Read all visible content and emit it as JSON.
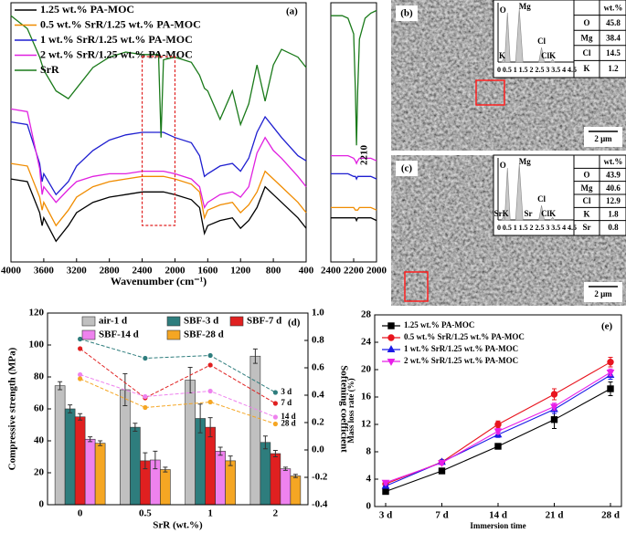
{
  "chart_data": [
    {
      "type": "line",
      "label": "(a)",
      "xlabel": "Wavenumber (cm⁻¹)",
      "x": [
        4000,
        3800,
        3650,
        3620,
        3600,
        3450,
        3300,
        3200,
        3000,
        2800,
        2600,
        2400,
        2200,
        2170,
        2140,
        2000,
        1800,
        1700,
        1640,
        1600,
        1450,
        1300,
        1200,
        1100,
        1000,
        900,
        800,
        700,
        500,
        400
      ],
      "xlim": [
        4000,
        400
      ],
      "xticks": [
        4000,
        3600,
        3200,
        2800,
        2400,
        2000,
        1600,
        1200,
        800,
        400
      ],
      "ylim": [
        0,
        100
      ],
      "legend": "upper left",
      "series": [
        {
          "name": "1.25 wt.% PA-MOC",
          "color": "#000000",
          "values": [
            32,
            31,
            19,
            14,
            17,
            8,
            14,
            19,
            23,
            25,
            26,
            27,
            27,
            27,
            27,
            26,
            24,
            21,
            11,
            14,
            16,
            17,
            13,
            16,
            21,
            29,
            26,
            23,
            17,
            13
          ]
        },
        {
          "name": "0.5 wt.% SrR/1.25 wt.% PA-MOC",
          "color": "#f08c00",
          "values": [
            38,
            37,
            25,
            20,
            23,
            14,
            20,
            25,
            29,
            31,
            32,
            33,
            33,
            33,
            33,
            32,
            30,
            27,
            17,
            20,
            22,
            23,
            19,
            22,
            27,
            35,
            32,
            29,
            23,
            19
          ]
        },
        {
          "name": "1 wt.% SrR/1.25 wt.% PA-MOC",
          "color": "#1f1fd0",
          "values": [
            54,
            53,
            38,
            31,
            34,
            26,
            31,
            37,
            43,
            47,
            49,
            50,
            50,
            50,
            50,
            48,
            46,
            41,
            33,
            34,
            37,
            38,
            35,
            40,
            50,
            56,
            52,
            48,
            41,
            39
          ]
        },
        {
          "name": "2 wt.% SrR/1.25 wt.% PA-MOC",
          "color": "#e020e0",
          "values": [
            59,
            58,
            36,
            26,
            29,
            23,
            28,
            31,
            33,
            34,
            34,
            35,
            35,
            35,
            35,
            34,
            32,
            29,
            21,
            23,
            26,
            27,
            25,
            29,
            42,
            48,
            43,
            40,
            33,
            29
          ]
        },
        {
          "name": "SrR",
          "color": "#1a7a1a",
          "values": [
            95,
            90,
            79,
            76,
            74,
            66,
            63,
            67,
            75,
            79,
            81,
            80,
            80,
            48,
            78,
            79,
            77,
            72,
            67,
            66,
            55,
            66,
            53,
            61,
            76,
            62,
            76,
            82,
            79,
            75
          ]
        }
      ]
    },
    {
      "type": "line",
      "x": [
        2400,
        2300,
        2250,
        2200,
        2185,
        2175,
        2165,
        2150,
        2100,
        2050,
        2000
      ],
      "xlim": [
        2400,
        2000
      ],
      "xticks": [
        2400,
        2200,
        2000
      ],
      "ylim": [
        0,
        100
      ],
      "annotation": "2210",
      "series": [
        {
          "color": "#000000",
          "values": [
            17,
            17,
            17,
            17,
            17,
            16,
            17,
            17,
            17,
            17,
            16
          ]
        },
        {
          "color": "#f08c00",
          "values": [
            21,
            21,
            21,
            21,
            20,
            20,
            20,
            21,
            21,
            21,
            20
          ]
        },
        {
          "color": "#1f1fd0",
          "values": [
            34,
            34,
            34,
            33,
            33,
            32,
            33,
            33,
            33,
            33,
            32
          ]
        },
        {
          "color": "#e020e0",
          "values": [
            41,
            41,
            41,
            40,
            39,
            38,
            39,
            40,
            40,
            40,
            39
          ]
        },
        {
          "color": "#1a7a1a",
          "values": [
            95,
            95,
            94,
            88,
            66,
            45,
            66,
            86,
            94,
            96,
            97
          ]
        }
      ]
    },
    {
      "type": "bar",
      "label": "(d)",
      "xlabel": "SrR (wt.%)",
      "ylabel": "Compressive strength (MPa)",
      "y2label": "Softening coefficient",
      "categories": [
        "0",
        "0.5",
        "1",
        "2"
      ],
      "ylim": [
        0,
        120
      ],
      "yticks": [
        0,
        20,
        40,
        60,
        80,
        100,
        120
      ],
      "y2lim": [
        -0.4,
        1.0
      ],
      "y2ticks": [
        -0.4,
        -0.2,
        {
          "value": 0,
          "label": "0.0"
        },
        0.2,
        0.4,
        0.6,
        0.8,
        {
          "value": 1,
          "label": "1.0"
        }
      ],
      "series": [
        {
          "name": "air-1 d",
          "color": "#c0c0c0",
          "values": [
            74.5,
            72,
            78,
            93
          ],
          "errors": [
            2.5,
            10,
            8,
            4.5
          ]
        },
        {
          "name": "SBF-3 d",
          "color": "#2e7d7d",
          "values": [
            60,
            48.5,
            54,
            39
          ],
          "errors": [
            2.5,
            2.5,
            9,
            4
          ]
        },
        {
          "name": "SBF-7 d",
          "color": "#e02020",
          "values": [
            55,
            27.5,
            48.5,
            32
          ],
          "errors": [
            2,
            5,
            6,
            2
          ]
        },
        {
          "name": "SBF-14 d",
          "color": "#ee82ee",
          "values": [
            41,
            28,
            33.5,
            22.5
          ],
          "errors": [
            1.5,
            5.5,
            2.5,
            1
          ]
        },
        {
          "name": "SBF-28 d",
          "color": "#f5a623",
          "values": [
            38.5,
            22,
            27.5,
            18
          ],
          "errors": [
            1.5,
            1.5,
            3,
            1
          ]
        },
        {
          "name": "3 d",
          "type": "line",
          "axis": "y2",
          "color": "#2e7d7d",
          "values": [
            0.81,
            0.67,
            0.69,
            0.42
          ]
        },
        {
          "name": "7 d",
          "type": "line",
          "axis": "y2",
          "color": "#e02020",
          "values": [
            0.74,
            0.38,
            0.62,
            0.34
          ]
        },
        {
          "name": "14 d",
          "type": "line",
          "axis": "y2",
          "color": "#ee82ee",
          "values": [
            0.55,
            0.39,
            0.43,
            0.24
          ]
        },
        {
          "name": "28 d",
          "type": "line",
          "axis": "y2",
          "color": "#f5a623",
          "values": [
            0.52,
            0.31,
            0.35,
            0.19
          ]
        }
      ]
    },
    {
      "type": "line",
      "label": "(e)",
      "xlabel": "Immersion time",
      "ylabel": "Mass loss rate (%)",
      "categories": [
        "3 d",
        "7 d",
        "14 d",
        "21 d",
        "28 d"
      ],
      "ylim": [
        0,
        28
      ],
      "yticks": [
        0,
        4,
        8,
        12,
        16,
        20,
        24,
        28
      ],
      "legend": "upper left",
      "series": [
        {
          "name": "1.25 wt.% PA-MOC",
          "color": "#000000",
          "marker": "square",
          "values": [
            2.2,
            5.2,
            8.8,
            12.7,
            17.2
          ],
          "errors": [
            0.3,
            0.3,
            0.3,
            1.3,
            1.0
          ]
        },
        {
          "name": "0.5 wt.% SrR/1.25 wt.% PA-MOC",
          "color": "#e8141e",
          "marker": "circle",
          "values": [
            3.3,
            6.5,
            12.0,
            16.4,
            21.1
          ],
          "errors": [
            0.3,
            0.3,
            0.5,
            0.8,
            0.7
          ]
        },
        {
          "name": "1 wt.% SrR/1.25 wt.% PA-MOC",
          "color": "#1a1ae6",
          "marker": "triangle",
          "values": [
            3.0,
            6.5,
            10.5,
            14.2,
            19.2
          ],
          "errors": [
            0.3,
            0.3,
            0.4,
            0.6,
            0.6
          ]
        },
        {
          "name": "2 wt.% SrR/1.25 wt.% PA-MOC",
          "color": "#e81ee8",
          "marker": "triangle-down",
          "values": [
            3.5,
            6.4,
            11.0,
            14.6,
            19.6
          ],
          "errors": [
            0.3,
            0.3,
            0.4,
            0.5,
            0.5
          ]
        }
      ]
    }
  ],
  "sem_panels": [
    {
      "label": "(b)",
      "scale_bar": "2 μm",
      "spectrum_ticks": [
        0,
        0.5,
        1,
        1.5,
        2,
        2.5,
        3,
        3.5,
        4,
        4.5
      ],
      "peak_labels": [
        "K",
        "O",
        "Mg",
        "Cl",
        "Cl",
        "K"
      ],
      "table_header": "wt.%",
      "table": [
        [
          "O",
          45.8
        ],
        [
          "Mg",
          38.4
        ],
        [
          "Cl",
          14.5
        ],
        [
          "K",
          1.2
        ]
      ]
    },
    {
      "label": "(c)",
      "scale_bar": "2 μm",
      "spectrum_ticks": [
        0,
        0.5,
        1,
        1.5,
        2,
        2.5,
        3,
        3.5,
        4,
        4.5
      ],
      "peak_labels": [
        "SrK",
        "O",
        "Mg",
        "Sr",
        "Cl",
        "Cl",
        "K"
      ],
      "table_header": "wt.%",
      "table": [
        [
          "O",
          43.9
        ],
        [
          "Mg",
          40.6
        ],
        [
          "Cl",
          12.9
        ],
        [
          "K",
          1.8
        ],
        [
          "Sr",
          0.8
        ]
      ]
    }
  ]
}
